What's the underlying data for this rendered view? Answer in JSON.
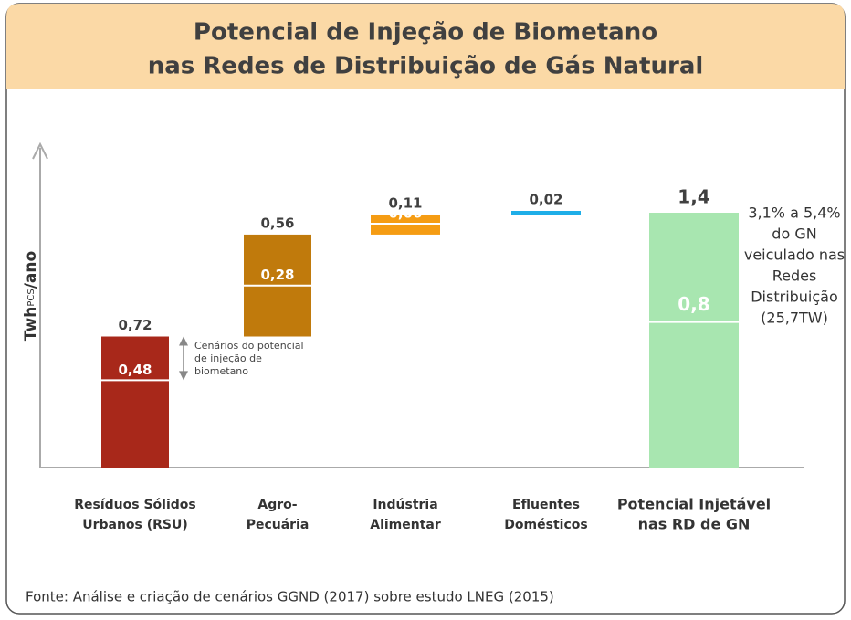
{
  "chart_data": {
    "type": "waterfall",
    "title": [
      "Potencial de Injeção de Biometano",
      "nas Redes de Distribuição de Gás Natural"
    ],
    "y_label": [
      "Twh",
      "PCS",
      "/ano"
    ],
    "categories": [
      [
        "Resíduos Sólidos",
        "Urbanos (RSU)"
      ],
      [
        "Agro-",
        "Pecuária"
      ],
      [
        "Indústria",
        "Alimentar"
      ],
      [
        "Efluentes",
        "Domésticos"
      ],
      [
        "Potencial Injetável",
        "nas RD de GN"
      ]
    ],
    "values": [
      0.72,
      0.56,
      0.11,
      0.02,
      1.4
    ],
    "value_labels": [
      "0,72",
      "0,56",
      "0,11",
      "0,02",
      "1,4"
    ],
    "inner_values": [
      0.48,
      0.28,
      0.06,
      null,
      0.8
    ],
    "inner_value_labels": [
      "0,48",
      "0,28",
      "0,06",
      null,
      "0,8"
    ],
    "colors": [
      "#a8281a",
      "#c07a0c",
      "#f59c13",
      "#1eaee8",
      "#a8e6b0"
    ],
    "total_index": 4,
    "ylim": [
      0,
      1.4
    ],
    "annotation": [
      "Cenários do potencial",
      "de injeção de",
      "biometano"
    ],
    "side_note": [
      "3,1% a 5,4%",
      "do GN",
      "veiculado nas",
      "Redes",
      "Distribuição",
      "(25,7TW)"
    ],
    "source": "Fonte: Análise e criação de cenários GGND (2017) sobre estudo LNEG (2015)"
  }
}
